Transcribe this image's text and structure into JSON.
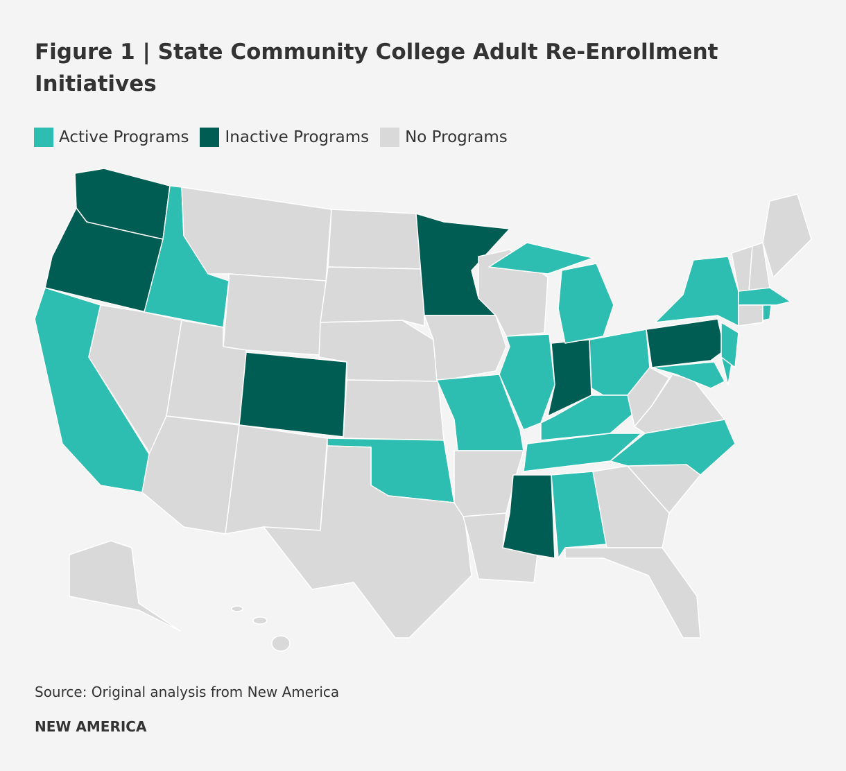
{
  "title": "Figure 1 | State Community College Adult Re-Enrollment Initiatives",
  "legend": {
    "items": [
      {
        "label": "Active Programs",
        "color": "#2ebdb1"
      },
      {
        "label": "Inactive Programs",
        "color": "#005d54"
      },
      {
        "label": "No Programs",
        "color": "#d9d9d9"
      }
    ]
  },
  "source": "Source: Original analysis from New America",
  "brand": "NEW AMERICA"
}
